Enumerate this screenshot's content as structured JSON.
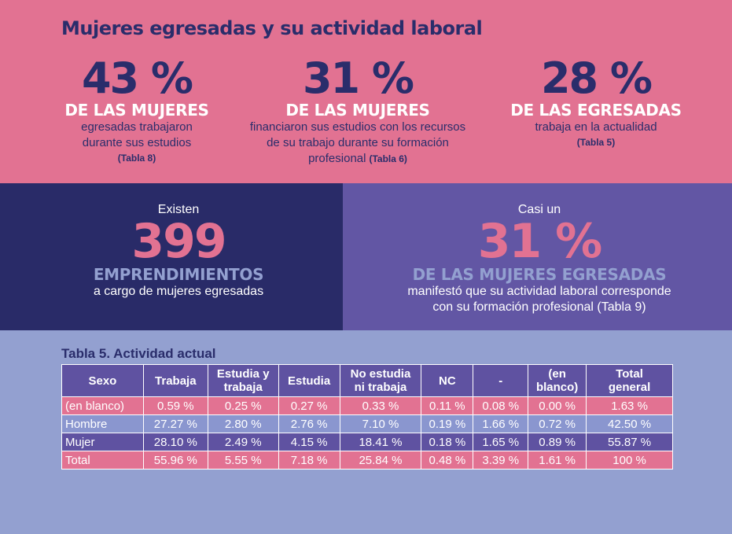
{
  "title": "Mujeres egresadas y su actividad laboral",
  "stats": [
    {
      "value": "43 %",
      "caption": "DE LAS MUJERES",
      "desc_lines": [
        "egresadas trabajaron",
        "durante sus estudios"
      ],
      "ref": "(Tabla 8)"
    },
    {
      "value": "31 %",
      "caption": "DE LAS MUJERES",
      "desc_lines": [
        "financiaron sus estudios con los recursos",
        "de su trabajo durante su formación"
      ],
      "desc_last": "profesional",
      "ref": "(Tabla 6)"
    },
    {
      "value": "28 %",
      "caption": "DE LAS EGRESADAS",
      "desc_lines": [
        "trabaja en la actualidad"
      ],
      "ref": "(Tabla 5)"
    }
  ],
  "highlight_left": {
    "pre": "Existen",
    "value": "399",
    "caption": "EMPRENDIMIENTOS",
    "desc": "a cargo de mujeres egresadas"
  },
  "highlight_right": {
    "pre": "Casi un",
    "value": "31 %",
    "caption": "DE LAS MUJERES EGRESADAS",
    "desc_lines": [
      "manifestó que su actividad laboral corresponde",
      "con su formación profesional (Tabla 9)"
    ]
  },
  "table": {
    "title": "Tabla 5. Actividad actual",
    "headers": [
      [
        "Sexo"
      ],
      [
        "Trabaja"
      ],
      [
        "Estudia y",
        "trabaja"
      ],
      [
        "Estudia"
      ],
      [
        "No estudia",
        "ni trabaja"
      ],
      [
        "NC"
      ],
      [
        "-"
      ],
      [
        "(en",
        "blanco)"
      ],
      [
        "Total",
        "general"
      ]
    ],
    "rows": [
      [
        "(en blanco)",
        "0.59 %",
        "0.25 %",
        "0.27 %",
        "0.33 %",
        "0.11 %",
        "0.08 %",
        "0.00 %",
        "1.63 %"
      ],
      [
        "Hombre",
        "27.27 %",
        "2.80 %",
        "2.76 %",
        "7.10 %",
        "0.19 %",
        "1.66 %",
        "0.72 %",
        "42.50 %"
      ],
      [
        "Mujer",
        "28.10 %",
        "2.49 %",
        "4.15 %",
        "18.41 %",
        "0.18 %",
        "1.65 %",
        "0.89 %",
        "55.87 %"
      ],
      [
        "Total",
        "55.96 %",
        "5.55 %",
        "7.18 %",
        "25.84 %",
        "0.48 %",
        "3.39 %",
        "1.61 %",
        "100 %"
      ]
    ]
  },
  "colors": {
    "pink": "#e27292",
    "navy": "#292b68",
    "purple": "#6256a4",
    "light_blue": "#93a0d0"
  }
}
